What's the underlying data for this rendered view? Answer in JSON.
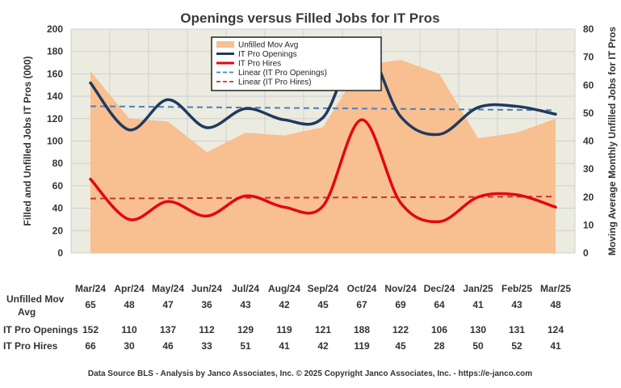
{
  "chart_data": {
    "type": "area+line",
    "title": "Openings versus Filled Jobs for IT Pros",
    "categories": [
      "Mar/24",
      "Apr/24",
      "May/24",
      "Jun/24",
      "Jul/24",
      "Aug/24",
      "Sep/24",
      "Oct/24",
      "Nov/24",
      "Dec/24",
      "Jan/25",
      "Feb/25",
      "Mar/25"
    ],
    "y_left": {
      "label": "Filled and Unfilled Jobs IT Pros (000)",
      "min": 0,
      "max": 200,
      "step": 20
    },
    "y_right": {
      "label": "Moving Average Monthly Unfilled Jobs for IT Pros",
      "min": 0,
      "max": 80,
      "step": 10
    },
    "grid": true,
    "legend_position": "top-center",
    "series": [
      {
        "name": "Unfilled Mov Avg",
        "type": "area",
        "axis": "right",
        "color": "#f8bf90",
        "values": [
          65,
          48,
          47,
          36,
          43,
          42,
          45,
          67,
          69,
          64,
          41,
          43,
          48
        ]
      },
      {
        "name": "IT Pro Openings",
        "type": "line",
        "axis": "left",
        "color": "#1f3a5f",
        "values": [
          152,
          110,
          137,
          112,
          129,
          119,
          121,
          188,
          122,
          106,
          130,
          131,
          124
        ]
      },
      {
        "name": "IT Pro Hires",
        "type": "line",
        "axis": "left",
        "color": "#e30613",
        "values": [
          66,
          30,
          46,
          33,
          51,
          41,
          42,
          119,
          45,
          28,
          50,
          52,
          41
        ]
      }
    ],
    "trendlines": [
      {
        "name": "Linear (IT Pro Openings)",
        "of": "IT Pro Openings",
        "color": "#4a7fc1",
        "dash": "dashed"
      },
      {
        "name": "Linear (IT Pro Hires)",
        "of": "IT Pro Hires",
        "color": "#c0392b",
        "dash": "dashed"
      }
    ],
    "data_table": {
      "rows": [
        {
          "label": [
            "Unfilled Mov",
            "Avg"
          ],
          "series": "Unfilled Mov Avg"
        },
        {
          "label": [
            "IT Pro Openings"
          ],
          "series": "IT Pro Openings"
        },
        {
          "label": [
            "IT Pro Hires"
          ],
          "series": "IT Pro Hires"
        }
      ]
    },
    "colors": {
      "plot_bg": "#ecebe0",
      "grid": "#cfcfcf"
    }
  },
  "footer": "Data Source BLS - Analysis by Janco Associates, Inc. © 2025 Copyright Janco Associates, Inc. - https://e-janco.com"
}
